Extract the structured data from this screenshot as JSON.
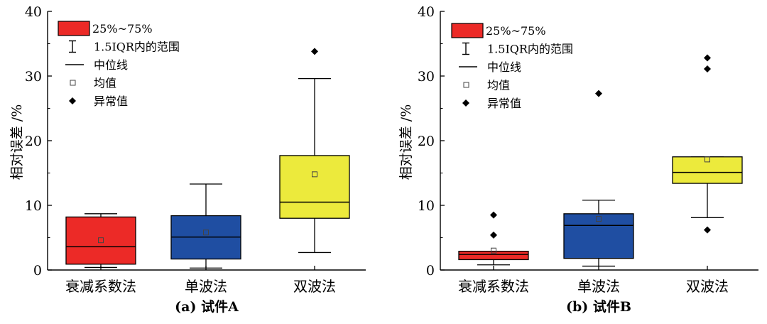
{
  "chart_data": [
    {
      "type": "box",
      "caption": "(a) 试件A",
      "ylabel": "相对误差 /%",
      "ylim": [
        0,
        40
      ],
      "yticks": [
        "0",
        "10",
        "20",
        "30",
        "40"
      ],
      "categories": [
        "衰减系数法",
        "单波法",
        "双波法"
      ],
      "legend": {
        "placement": "top-left",
        "entries": [
          "25%~75%",
          "1.5IQR内的范围",
          "中位线",
          "均值",
          "异常值"
        ]
      },
      "boxes": [
        {
          "name": "衰减系数法",
          "color": "#ec2a27",
          "whisker_low": 0.4,
          "q1": 0.9,
          "median": 3.6,
          "q3": 8.2,
          "whisker_high": 8.7,
          "mean": 4.6,
          "outliers": []
        },
        {
          "name": "单波法",
          "color": "#1f4ea2",
          "whisker_low": 0.3,
          "q1": 1.7,
          "median": 5.1,
          "q3": 8.4,
          "whisker_high": 13.3,
          "mean": 5.8,
          "outliers": []
        },
        {
          "name": "双波法",
          "color": "#ecea3c",
          "whisker_low": 2.7,
          "q1": 8.0,
          "median": 10.5,
          "q3": 17.7,
          "whisker_high": 29.6,
          "mean": 14.8,
          "outliers": [
            33.8
          ]
        }
      ]
    },
    {
      "type": "box",
      "caption": "(b) 试件B",
      "ylabel": "相对误差 /%",
      "ylim": [
        0,
        40
      ],
      "yticks": [
        "0",
        "10",
        "20",
        "30",
        "40"
      ],
      "categories": [
        "衰减系数法",
        "单波法",
        "双波法"
      ],
      "legend": {
        "placement": "top-left",
        "entries": [
          "25%~75%",
          "1.5IQR内的范围",
          "中位线",
          "均值",
          "异常值"
        ]
      },
      "boxes": [
        {
          "name": "衰减系数法",
          "color": "#ec2a27",
          "whisker_low": 0.8,
          "q1": 1.6,
          "median": 2.4,
          "q3": 2.9,
          "whisker_high": 2.9,
          "mean": 3.0,
          "outliers": [
            8.5,
            5.4
          ]
        },
        {
          "name": "单波法",
          "color": "#1f4ea2",
          "whisker_low": 0.6,
          "q1": 1.8,
          "median": 6.9,
          "q3": 8.7,
          "whisker_high": 10.8,
          "mean": 7.9,
          "outliers": [
            27.3
          ]
        },
        {
          "name": "双波法",
          "color": "#ecea3c",
          "whisker_low": 8.1,
          "q1": 13.4,
          "median": 15.1,
          "q3": 17.5,
          "whisker_high": 17.5,
          "mean": 17.1,
          "outliers": [
            32.8,
            31.1,
            6.2
          ]
        }
      ]
    }
  ]
}
